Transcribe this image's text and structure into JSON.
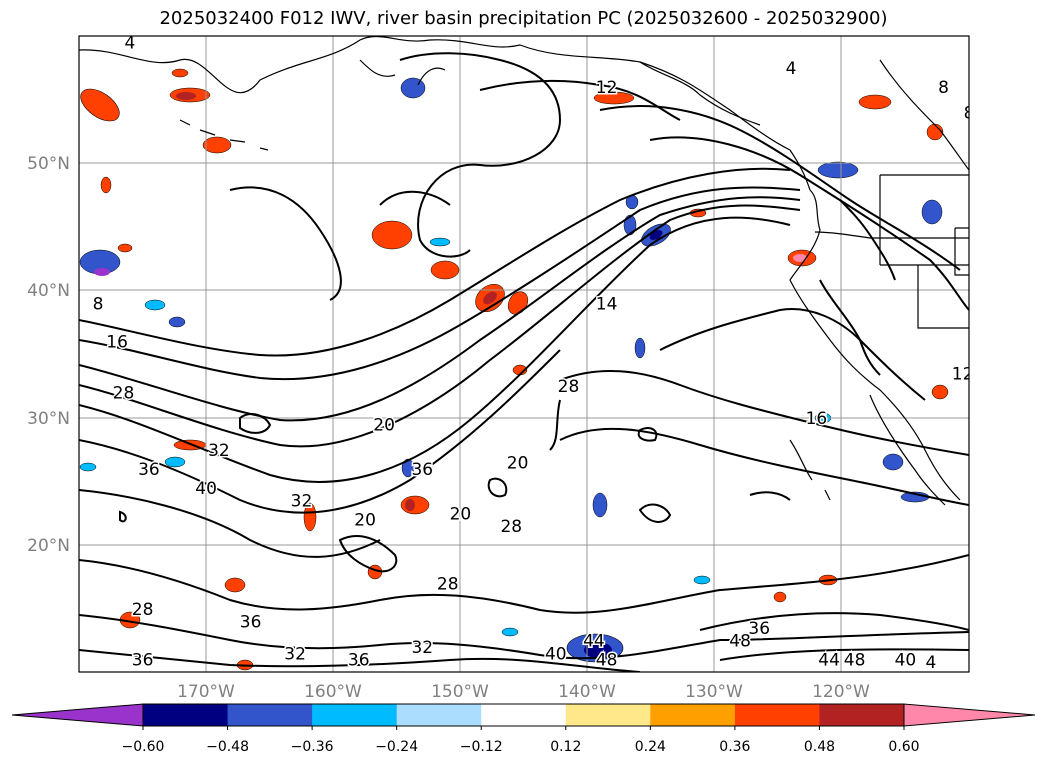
{
  "title": "2025032400 F012 IWV, river basin precipitation PC (2025032600 - 2025032900)",
  "axes": {
    "lat_labels": [
      "50°N",
      "40°N",
      "30°N",
      "20°N"
    ],
    "lon_labels": [
      "170°W",
      "160°W",
      "150°W",
      "140°W",
      "130°W",
      "120°W"
    ],
    "label_color": "#808080"
  },
  "contour_labels": [
    {
      "text": "4",
      "lon": -176,
      "lat": 59
    },
    {
      "text": "12",
      "lon": -138.5,
      "lat": 55.5
    },
    {
      "text": "4",
      "lon": -124,
      "lat": 57
    },
    {
      "text": "8",
      "lon": -112,
      "lat": 55.5
    },
    {
      "text": "8",
      "lon": -110,
      "lat": 53.5
    },
    {
      "text": "8",
      "lon": -178.5,
      "lat": 38.5
    },
    {
      "text": "14",
      "lon": -138.5,
      "lat": 38.5
    },
    {
      "text": "16",
      "lon": -177,
      "lat": 35.5
    },
    {
      "text": "8",
      "lon": -109,
      "lat": 37
    },
    {
      "text": "28",
      "lon": -176.5,
      "lat": 31.5
    },
    {
      "text": "28",
      "lon": -141.5,
      "lat": 32
    },
    {
      "text": "12",
      "lon": -110.5,
      "lat": 33
    },
    {
      "text": "16",
      "lon": -122,
      "lat": 29.5
    },
    {
      "text": "20",
      "lon": -156,
      "lat": 29
    },
    {
      "text": "32",
      "lon": -169,
      "lat": 27
    },
    {
      "text": "8",
      "lon": -109.5,
      "lat": 27
    },
    {
      "text": "36",
      "lon": -174.5,
      "lat": 25.5
    },
    {
      "text": "36",
      "lon": -153,
      "lat": 25.5
    },
    {
      "text": "20",
      "lon": -145.5,
      "lat": 26
    },
    {
      "text": "40",
      "lon": -170,
      "lat": 24
    },
    {
      "text": "32",
      "lon": -162.5,
      "lat": 23
    },
    {
      "text": "20",
      "lon": -150,
      "lat": 22
    },
    {
      "text": "20",
      "lon": -157.5,
      "lat": 21.5
    },
    {
      "text": "28",
      "lon": -146,
      "lat": 21
    },
    {
      "text": "28",
      "lon": -151,
      "lat": 16.5
    },
    {
      "text": "28",
      "lon": -175,
      "lat": 14.5
    },
    {
      "text": "36",
      "lon": -166.5,
      "lat": 13.5
    },
    {
      "text": "36",
      "lon": -126.5,
      "lat": 13
    },
    {
      "text": "32",
      "lon": -163,
      "lat": 11
    },
    {
      "text": "32",
      "lon": -153,
      "lat": 11.5
    },
    {
      "text": "36",
      "lon": -175,
      "lat": 10.5
    },
    {
      "text": "36",
      "lon": -158,
      "lat": 10.5
    },
    {
      "text": "40",
      "lon": -142.5,
      "lat": 11
    },
    {
      "text": "44",
      "lon": -139.5,
      "lat": 12
    },
    {
      "text": "48",
      "lon": -138.5,
      "lat": 10.5
    },
    {
      "text": "48",
      "lon": -128,
      "lat": 12
    },
    {
      "text": "44",
      "lon": -121,
      "lat": 10.5
    },
    {
      "text": "48",
      "lon": -119,
      "lat": 10.5
    },
    {
      "text": "40",
      "lon": -115,
      "lat": 10.5
    },
    {
      "text": "4",
      "lon": -113,
      "lat": 10.3
    }
  ],
  "colorbar": {
    "ticks": [
      "−0.60",
      "−0.48",
      "−0.36",
      "−0.24",
      "−0.12",
      "0.12",
      "0.24",
      "0.36",
      "0.48",
      "0.60"
    ],
    "under_color": "#9933cc",
    "over_color": "#ff88aa",
    "colors": [
      "#000080",
      "#3355cc",
      "#00bbff",
      "#aaddff",
      "#ffffff",
      "#ffe88a",
      "#ffa000",
      "#ff4000",
      "#b22222"
    ]
  },
  "style": {
    "grid_color": "#999999",
    "contour_color": "#000000",
    "coastline_color": "#000000"
  }
}
